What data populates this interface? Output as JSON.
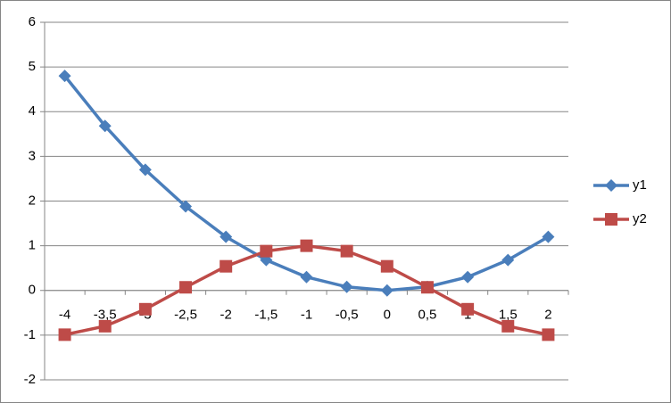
{
  "chart_data": {
    "type": "line",
    "categories": [
      "-4",
      "-3,5",
      "-3",
      "-2,5",
      "-2",
      "-1,5",
      "-1",
      "-0,5",
      "0",
      "0,5",
      "1",
      "1,5",
      "2"
    ],
    "series": [
      {
        "name": "y1",
        "color": "#4a7ebb",
        "marker": "diamond",
        "values": [
          4.8,
          3.68,
          2.7,
          1.88,
          1.2,
          0.68,
          0.3,
          0.08,
          0,
          0.08,
          0.3,
          0.68,
          1.2
        ]
      },
      {
        "name": "y2",
        "color": "#be4b48",
        "marker": "square",
        "values": [
          -0.99,
          -0.8,
          -0.42,
          0.07,
          0.54,
          0.88,
          1,
          0.88,
          0.54,
          0.07,
          -0.42,
          -0.8,
          -0.99
        ]
      }
    ],
    "ylim": [
      -2,
      6
    ],
    "yticks": [
      -2,
      -1,
      0,
      1,
      2,
      3,
      4,
      5,
      6
    ],
    "grid": true,
    "legend": "right"
  }
}
